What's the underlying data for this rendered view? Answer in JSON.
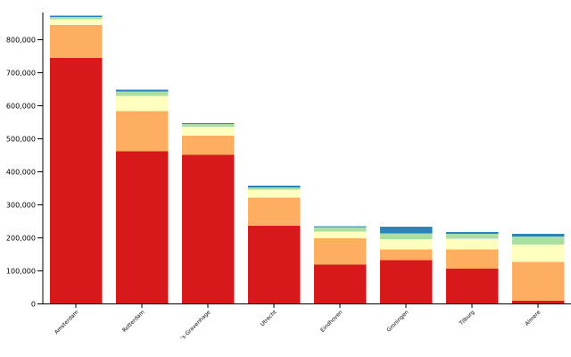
{
  "chart_data": {
    "type": "bar",
    "stacked": true,
    "title": "",
    "xlabel": "",
    "ylabel": "",
    "ylim": [
      0,
      880000
    ],
    "yticks": [
      0,
      100000,
      200000,
      300000,
      400000,
      500000,
      600000,
      700000,
      800000
    ],
    "ytick_labels": [
      "0",
      "100,000",
      "200,000",
      "300,000",
      "400,000",
      "500,000",
      "600,000",
      "700,000",
      "800,000"
    ],
    "grid": false,
    "legend": "none",
    "categories": [
      "Amsterdam",
      "Rotterdam",
      "'s-Gravenhage",
      "Utrecht",
      "Eindhoven",
      "Groningen",
      "Tilburg",
      "Almere"
    ],
    "series": [
      {
        "color": "#d7191c",
        "values": [
          742000,
          460000,
          450000,
          235000,
          117000,
          131000,
          105000,
          8000
        ]
      },
      {
        "color": "#fdae61",
        "values": [
          100000,
          122000,
          58000,
          85000,
          80000,
          33000,
          58000,
          117000
        ]
      },
      {
        "color": "#ffffbf",
        "values": [
          18000,
          45000,
          27000,
          24000,
          20000,
          31000,
          32000,
          53000
        ]
      },
      {
        "color": "#abdda4",
        "values": [
          6000,
          14000,
          7000,
          7000,
          14000,
          17000,
          16000,
          24000
        ]
      },
      {
        "color": "#2b83ba",
        "values": [
          5000,
          6000,
          3000,
          5000,
          3000,
          20000,
          5000,
          9000
        ]
      }
    ]
  }
}
